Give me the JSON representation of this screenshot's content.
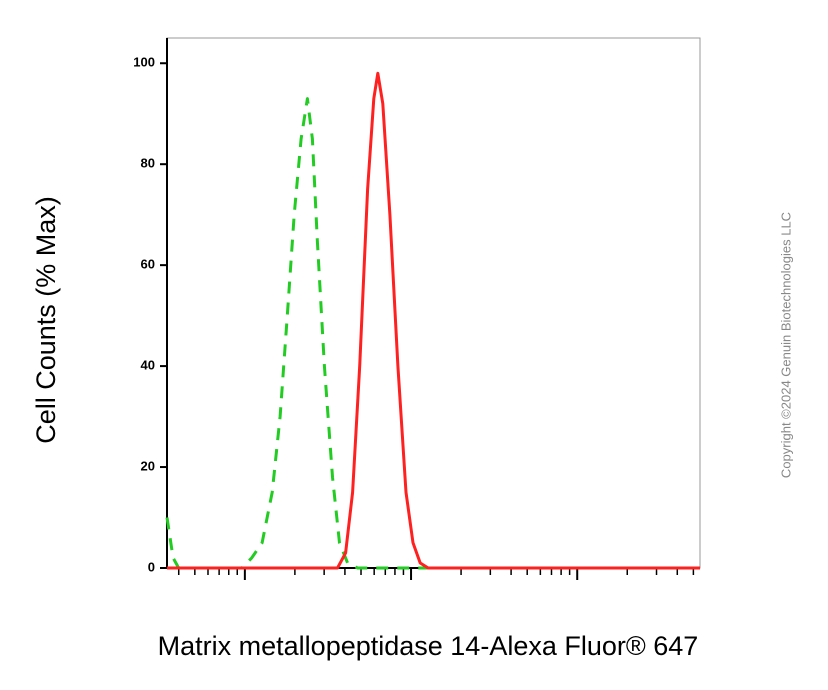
{
  "chart_data": {
    "type": "line",
    "y_label": "Cell Counts (% Max)",
    "x_label": "Matrix metallopeptidase 14-Alexa Fluor® 647",
    "watermark": "Copyright ©2024 Genuin Biotechnologies LLC",
    "xscale": "log",
    "xlim": [
      34,
      54800
    ],
    "xticks": [
      100,
      1000,
      10000
    ],
    "ylim": [
      0,
      105
    ],
    "yticks": [
      0,
      20,
      40,
      60,
      80,
      100
    ],
    "series": [
      {
        "color": "#22cc22",
        "dashed": true,
        "x": [
          34,
          37,
          40,
          96,
          110,
          127,
          146,
          163,
          180,
          198,
          218,
          238,
          255,
          273,
          301,
          337,
          371,
          415,
          477,
          54800
        ],
        "values": [
          10,
          2,
          0,
          0,
          2,
          5,
          15,
          30,
          50,
          70,
          85,
          93,
          85,
          65,
          40,
          18,
          5,
          1,
          0,
          0
        ]
      },
      {
        "color": "#ff2020",
        "dashed": false,
        "x": [
          34,
          361,
          404,
          445,
          491,
          548,
          597,
          631,
          676,
          746,
          834,
          933,
          1028,
          1135,
          1268,
          54800
        ],
        "values": [
          0,
          0,
          3,
          15,
          40,
          75,
          93,
          98,
          92,
          70,
          40,
          15,
          5,
          1,
          0,
          0
        ]
      }
    ]
  }
}
